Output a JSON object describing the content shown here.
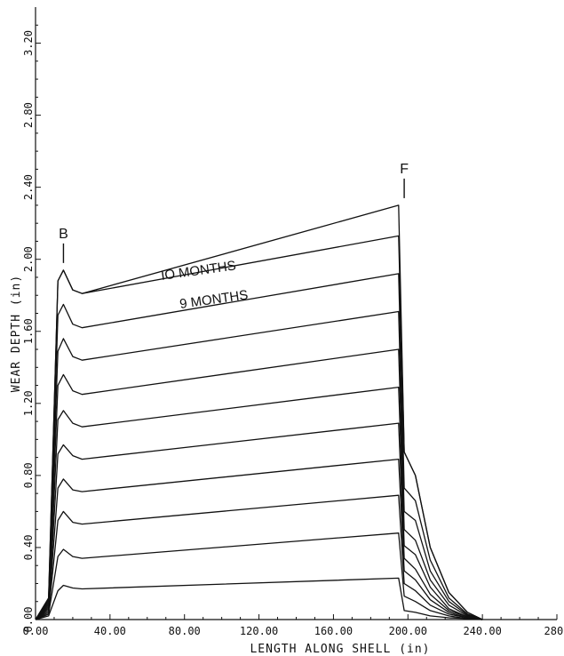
{
  "chart_data": {
    "type": "line",
    "title": "",
    "xlabel": "LENGTH ALONG SHELL (in)",
    "ylabel": "WEAR DEPTH (in)",
    "xlim": [
      0,
      280
    ],
    "ylim": [
      0,
      3.4
    ],
    "x_tick_labels": [
      "0.00",
      "40.00",
      "80.00",
      "120.00",
      "160.00",
      "200.00",
      "240.00",
      "280."
    ],
    "x_tick_values": [
      0,
      40,
      80,
      120,
      160,
      200,
      240,
      280
    ],
    "y_tick_labels": [
      "0.00",
      "0.40",
      "0.80",
      "1.20",
      "1.60",
      "2.00",
      "2.40",
      "2.80",
      "3.20"
    ],
    "y_tick_values": [
      0,
      0.4,
      0.8,
      1.2,
      1.6,
      2.0,
      2.4,
      2.8,
      3.2
    ],
    "grid": false,
    "legend": "none",
    "annotations": [
      {
        "text": "IO MONTHS",
        "series": 10
      },
      {
        "text": "9 MONTHS",
        "series": 9
      }
    ],
    "markers": [
      {
        "label": "B",
        "x": 15
      },
      {
        "label": "F",
        "x": 198
      }
    ],
    "series": [
      {
        "month": 1,
        "x": [
          0,
          7,
          12,
          15,
          20,
          25,
          195,
          198,
          204,
          212,
          222,
          232,
          240
        ],
        "y": [
          0,
          0.02,
          0.16,
          0.19,
          0.175,
          0.17,
          0.23,
          0.05,
          0.04,
          0.02,
          0.01,
          0.005,
          0
        ]
      },
      {
        "month": 2,
        "x": [
          0,
          7,
          12,
          15,
          20,
          25,
          195,
          198,
          204,
          212,
          222,
          232,
          240
        ],
        "y": [
          0,
          0.03,
          0.35,
          0.39,
          0.35,
          0.34,
          0.48,
          0.13,
          0.1,
          0.05,
          0.02,
          0.005,
          0
        ]
      },
      {
        "month": 3,
        "x": [
          0,
          7,
          12,
          15,
          20,
          25,
          195,
          198,
          204,
          212,
          222,
          232,
          240
        ],
        "y": [
          0,
          0.04,
          0.55,
          0.6,
          0.54,
          0.53,
          0.69,
          0.2,
          0.16,
          0.08,
          0.03,
          0.01,
          0
        ]
      },
      {
        "month": 4,
        "x": [
          0,
          7,
          12,
          15,
          20,
          25,
          195,
          198,
          204,
          212,
          222,
          232,
          240
        ],
        "y": [
          0,
          0.05,
          0.73,
          0.78,
          0.72,
          0.71,
          0.89,
          0.27,
          0.22,
          0.11,
          0.04,
          0.01,
          0
        ]
      },
      {
        "month": 5,
        "x": [
          0,
          7,
          12,
          15,
          20,
          25,
          195,
          198,
          204,
          212,
          222,
          232,
          240
        ],
        "y": [
          0,
          0.06,
          0.92,
          0.97,
          0.91,
          0.89,
          1.09,
          0.34,
          0.28,
          0.14,
          0.05,
          0.015,
          0
        ]
      },
      {
        "month": 6,
        "x": [
          0,
          7,
          12,
          15,
          20,
          25,
          195,
          198,
          204,
          212,
          222,
          232,
          240
        ],
        "y": [
          0,
          0.07,
          1.11,
          1.16,
          1.09,
          1.07,
          1.29,
          0.41,
          0.36,
          0.18,
          0.06,
          0.015,
          0
        ]
      },
      {
        "month": 7,
        "x": [
          0,
          7,
          12,
          15,
          20,
          25,
          195,
          198,
          204,
          212,
          222,
          232,
          240
        ],
        "y": [
          0,
          0.08,
          1.3,
          1.36,
          1.27,
          1.25,
          1.5,
          0.5,
          0.44,
          0.22,
          0.08,
          0.02,
          0
        ]
      },
      {
        "month": 8,
        "x": [
          0,
          7,
          12,
          15,
          20,
          25,
          195,
          198,
          204,
          212,
          222,
          232,
          240
        ],
        "y": [
          0,
          0.09,
          1.49,
          1.56,
          1.46,
          1.44,
          1.71,
          0.6,
          0.55,
          0.27,
          0.1,
          0.025,
          0
        ]
      },
      {
        "month": 9,
        "x": [
          0,
          7,
          12,
          15,
          20,
          25,
          195,
          198,
          204,
          212,
          222,
          232,
          240
        ],
        "y": [
          0,
          0.1,
          1.69,
          1.75,
          1.64,
          1.62,
          1.92,
          0.73,
          0.66,
          0.33,
          0.12,
          0.03,
          0
        ]
      },
      {
        "month": 10,
        "x": [
          0,
          7,
          12,
          15,
          20,
          25,
          195,
          198,
          204,
          212,
          222,
          232,
          240
        ],
        "y": [
          0,
          0.11,
          1.88,
          1.94,
          1.83,
          1.81,
          2.13,
          0.93,
          0.8,
          0.4,
          0.15,
          0.04,
          0
        ]
      },
      {
        "month": 11,
        "x": [
          0,
          7,
          12,
          15,
          20,
          25,
          195,
          198,
          204,
          212,
          222,
          232,
          240
        ],
        "y": [
          0,
          0.12,
          1.88,
          1.94,
          1.83,
          1.81,
          2.3,
          0.93,
          0.8,
          0.4,
          0.15,
          0.04,
          0
        ]
      }
    ]
  }
}
